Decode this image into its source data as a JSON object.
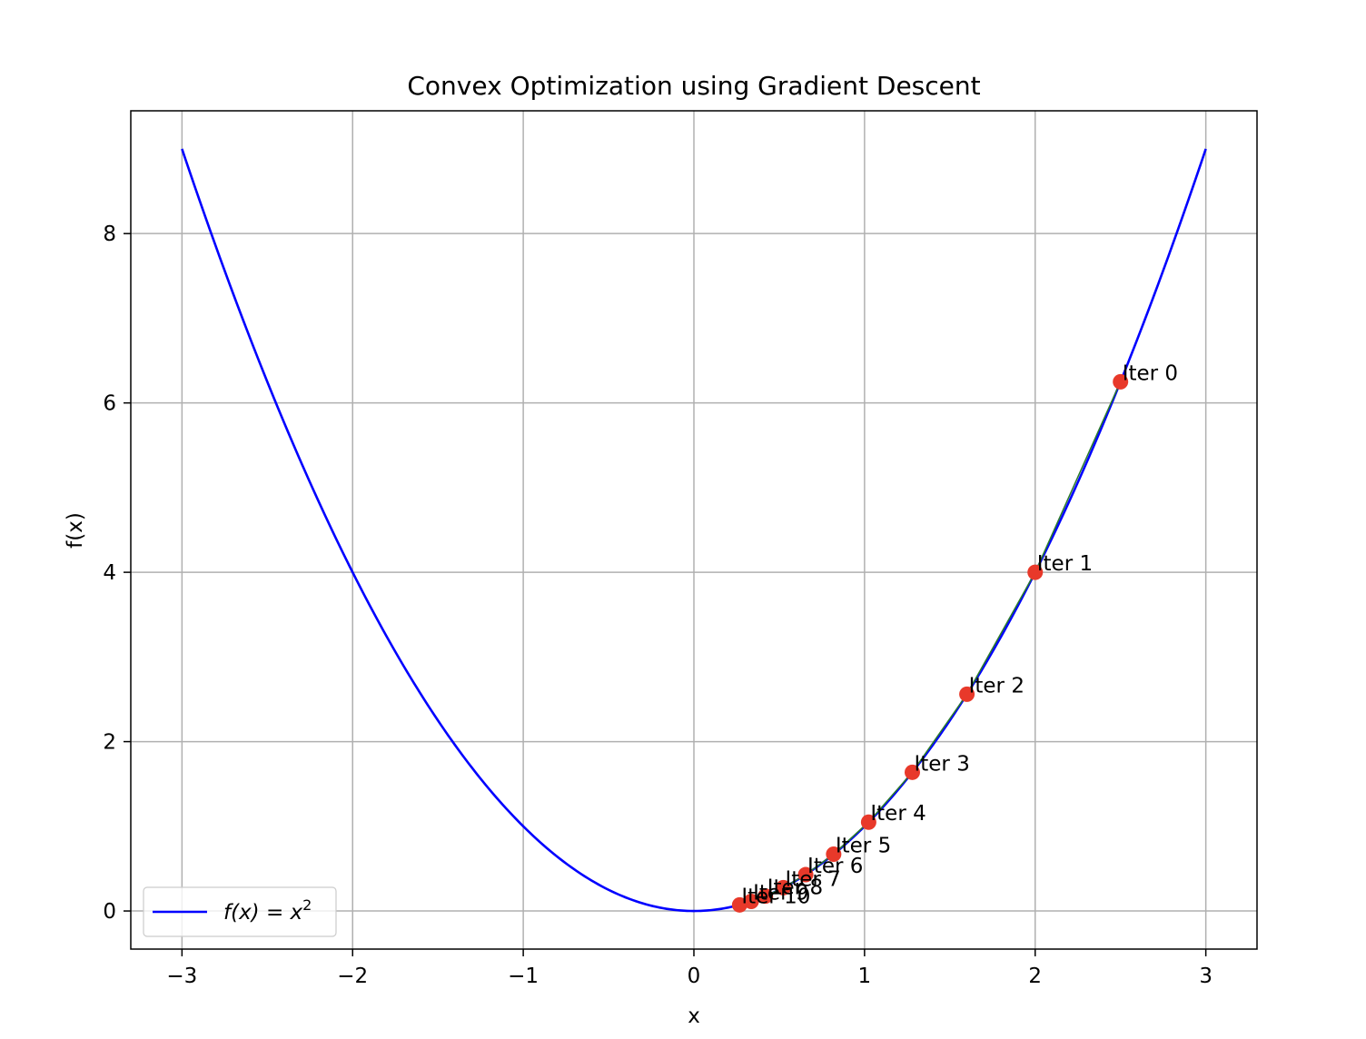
{
  "chart_data": {
    "type": "line",
    "title": "Convex Optimization using Gradient Descent",
    "xlabel": "x",
    "ylabel": "f(x)",
    "xlim": [
      -3.3,
      3.3
    ],
    "ylim": [
      -0.45,
      9.45
    ],
    "grid": true,
    "legend_position": "lower-left",
    "x_ticks": [
      -3,
      -2,
      -1,
      0,
      1,
      2,
      3
    ],
    "x_tick_labels": [
      "−3",
      "−2",
      "−1",
      "0",
      "1",
      "2",
      "3"
    ],
    "y_ticks": [
      0,
      2,
      4,
      6,
      8
    ],
    "y_tick_labels": [
      "0",
      "2",
      "4",
      "6",
      "8"
    ],
    "series": [
      {
        "name": "f(x) = x²",
        "legend_label": "f(x) = x",
        "legend_superscript": "2",
        "function": "x^2",
        "x_range": [
          -3,
          3
        ],
        "color": "#0000ff"
      }
    ],
    "iterations": {
      "color": "#e8392a",
      "path_color": "#2a7a2a",
      "points": [
        {
          "label": "Iter 0",
          "x": 2.5,
          "y": 6.25
        },
        {
          "label": "Iter 1",
          "x": 2.0,
          "y": 4.0
        },
        {
          "label": "Iter 2",
          "x": 1.6,
          "y": 2.56
        },
        {
          "label": "Iter 3",
          "x": 1.28,
          "y": 1.638
        },
        {
          "label": "Iter 4",
          "x": 1.024,
          "y": 1.049
        },
        {
          "label": "Iter 5",
          "x": 0.819,
          "y": 0.671
        },
        {
          "label": "Iter 6",
          "x": 0.655,
          "y": 0.429
        },
        {
          "label": "Iter 7",
          "x": 0.524,
          "y": 0.275
        },
        {
          "label": "Iter 8",
          "x": 0.419,
          "y": 0.176
        },
        {
          "label": "Iter 9",
          "x": 0.336,
          "y": 0.113
        },
        {
          "label": "Iter 10",
          "x": 0.268,
          "y": 0.072
        }
      ]
    }
  }
}
